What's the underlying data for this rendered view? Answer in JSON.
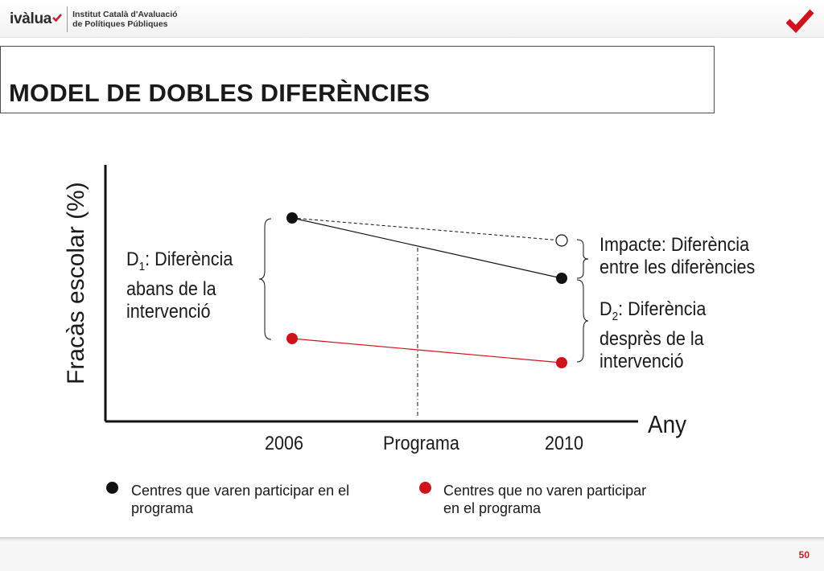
{
  "header": {
    "logo_text": "ivàlua",
    "institute_line1": "Institut Català d'Avaluació",
    "institute_line2": "de Polítiques Públiques"
  },
  "title": "MODEL DE DOBLES DIFERÈNCIES",
  "diagram": {
    "y_axis_label": "Fracàs escolar (%)",
    "x_axis_label": "Any",
    "tick_2006": "2006",
    "tick_programa": "Programa",
    "tick_2010": "2010",
    "d1_sub": "1",
    "d1_text": ": Diferència",
    "d1_line2": "abans de la",
    "d1_line3": "intervenció",
    "impact_line1": "Impacte: Diferència",
    "impact_line2": "entre les diferències",
    "d2_sub": "2",
    "d2_text": ": Diferència",
    "d2_line2": "desprès de la",
    "d2_line3": "intervenció",
    "d_letter": "D"
  },
  "legend": {
    "participants_line1": "Centres que varen participar en el",
    "participants_line2": "programa",
    "non_participants_line1": "Centres que no varen participar",
    "non_participants_line2": "en el programa"
  },
  "colors": {
    "participants": "#111111",
    "non_participants": "#d0121c",
    "brand_red": "#c0222c"
  },
  "page_number": "50"
}
